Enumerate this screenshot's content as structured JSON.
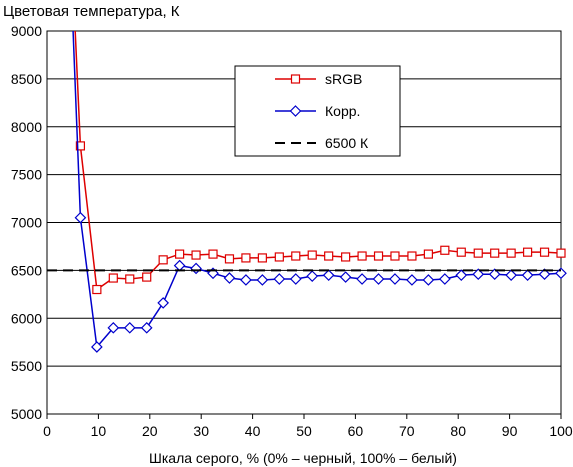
{
  "chart_data": {
    "type": "line",
    "title": "Цветовая температура, К",
    "xlabel": "Шкала серого, % (0% – черный, 100% – белый)",
    "ylabel": "",
    "xlim": [
      0,
      100
    ],
    "ylim": [
      5000,
      9000
    ],
    "x_ticks": [
      0,
      10,
      20,
      30,
      40,
      50,
      60,
      70,
      80,
      90,
      100
    ],
    "y_ticks": [
      5000,
      5500,
      6000,
      6500,
      7000,
      7500,
      8000,
      8500,
      9000
    ],
    "grid": "horizontal",
    "legend_position": "top-right",
    "series": [
      {
        "name": "sRGB",
        "color": "#dd0000",
        "marker": "square",
        "x": [
          6.5,
          9.7,
          12.9,
          16.1,
          19.4,
          22.6,
          25.8,
          29.0,
          32.3,
          35.5,
          38.7,
          41.9,
          45.2,
          48.4,
          51.6,
          54.8,
          58.1,
          61.3,
          64.5,
          67.7,
          71.0,
          74.2,
          77.4,
          80.6,
          83.9,
          87.1,
          90.3,
          93.5,
          96.8,
          100
        ],
        "values": [
          7800,
          6300,
          6420,
          6410,
          6430,
          6610,
          6670,
          6660,
          6670,
          6620,
          6630,
          6630,
          6640,
          6650,
          6660,
          6650,
          6640,
          6650,
          6650,
          6650,
          6650,
          6670,
          6710,
          6690,
          6680,
          6680,
          6680,
          6690,
          6690,
          6680
        ]
      },
      {
        "name": "Корр.",
        "color": "#0000cc",
        "marker": "diamond",
        "x": [
          6.5,
          9.7,
          12.9,
          16.1,
          19.4,
          22.6,
          25.8,
          29.0,
          32.3,
          35.5,
          38.7,
          41.9,
          45.2,
          48.4,
          51.6,
          54.8,
          58.1,
          61.3,
          64.5,
          67.7,
          71.0,
          74.2,
          77.4,
          80.6,
          83.9,
          87.1,
          90.3,
          93.5,
          96.8,
          100
        ],
        "values": [
          7050,
          5700,
          5900,
          5900,
          5900,
          6160,
          6550,
          6520,
          6470,
          6420,
          6400,
          6400,
          6410,
          6410,
          6440,
          6450,
          6430,
          6410,
          6410,
          6410,
          6400,
          6400,
          6410,
          6450,
          6460,
          6460,
          6450,
          6450,
          6460,
          6470
        ]
      },
      {
        "name": "6500 К",
        "color": "#000000",
        "style": "dashed",
        "x": [
          0,
          100
        ],
        "values": [
          6500,
          6500
        ]
      }
    ]
  }
}
